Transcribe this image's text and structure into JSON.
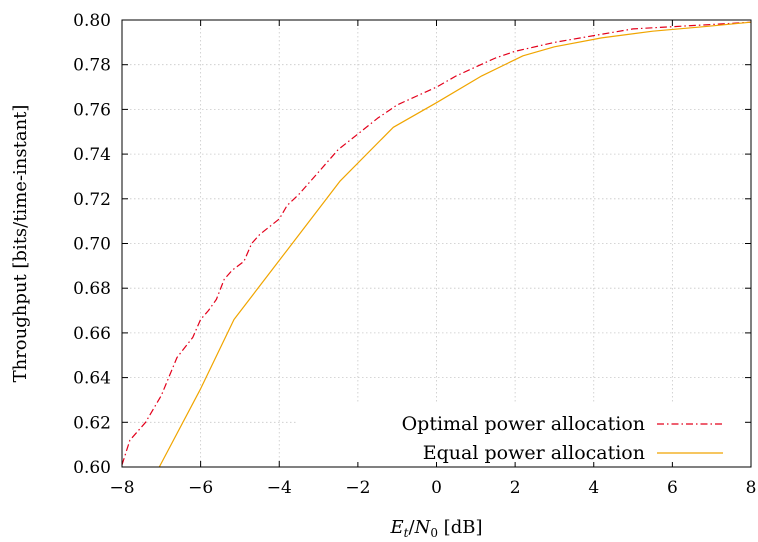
{
  "chart_data": {
    "type": "line",
    "xlabel_parts": {
      "e": "E",
      "t": "t",
      "slash": "/",
      "n": "N",
      "zero": "0",
      "unit": " [dB]"
    },
    "ylabel": "Throughput [bits/time-instant]",
    "xlim": [
      -8,
      8
    ],
    "ylim": [
      0.6,
      0.8
    ],
    "xticks": [
      -8,
      -6,
      -4,
      -2,
      0,
      2,
      4,
      6,
      8
    ],
    "xtick_labels": [
      "−8",
      "−6",
      "−4",
      "−2",
      "0",
      "2",
      "4",
      "6",
      "8"
    ],
    "yticks": [
      0.6,
      0.62,
      0.64,
      0.66,
      0.68,
      0.7,
      0.72,
      0.74,
      0.76,
      0.78,
      0.8
    ],
    "ytick_labels": [
      "0.60",
      "0.62",
      "0.64",
      "0.66",
      "0.68",
      "0.70",
      "0.72",
      "0.74",
      "0.76",
      "0.78",
      "0.80"
    ],
    "grid": true,
    "legend_position": "bottom-right",
    "series": [
      {
        "name": "Optimal power allocation",
        "color": "#e3001b",
        "style": "dash-dot",
        "x": [
          -8.0,
          -7.8,
          -7.4,
          -7.0,
          -6.6,
          -6.2,
          -6.0,
          -5.8,
          -5.6,
          -5.4,
          -5.2,
          -4.9,
          -4.7,
          -4.5,
          -4.0,
          -3.8,
          -3.5,
          -3.0,
          -2.5,
          -2.0,
          -1.5,
          -1.0,
          -0.5,
          0.0,
          0.5,
          1.0,
          1.5,
          2.0,
          3.0,
          4.0,
          5.0,
          6.0,
          7.0,
          8.0
        ],
        "y": [
          0.601,
          0.612,
          0.62,
          0.632,
          0.649,
          0.658,
          0.666,
          0.67,
          0.675,
          0.684,
          0.688,
          0.692,
          0.7,
          0.704,
          0.711,
          0.717,
          0.722,
          0.732,
          0.742,
          0.749,
          0.756,
          0.762,
          0.766,
          0.77,
          0.775,
          0.779,
          0.783,
          0.786,
          0.79,
          0.793,
          0.796,
          0.797,
          0.798,
          0.799
        ]
      },
      {
        "name": "Equal power allocation",
        "color": "#f0a500",
        "style": "solid",
        "x": [
          -7.05,
          -6.0,
          -5.15,
          -3.8,
          -2.45,
          -1.1,
          0.0,
          1.15,
          2.2,
          3.0,
          4.2,
          5.5,
          6.8,
          8.0
        ],
        "y": [
          0.6,
          0.635,
          0.666,
          0.697,
          0.728,
          0.752,
          0.763,
          0.775,
          0.784,
          0.788,
          0.792,
          0.795,
          0.797,
          0.799
        ]
      }
    ]
  }
}
